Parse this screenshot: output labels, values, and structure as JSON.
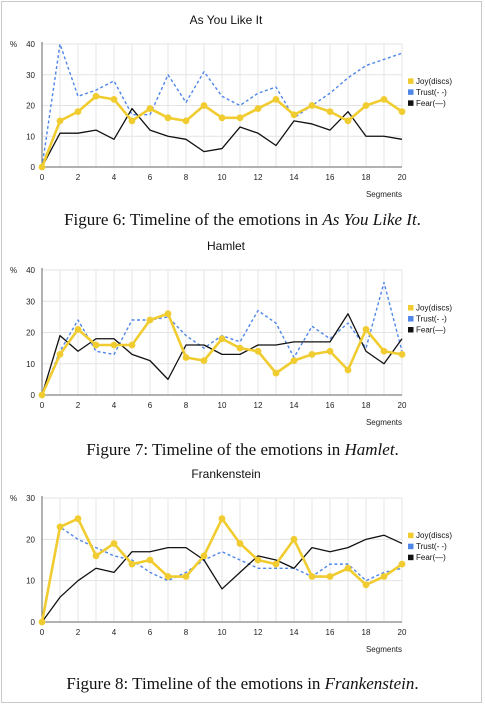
{
  "chart_data": [
    {
      "type": "line",
      "title": "As You Like It",
      "ylabel": "%",
      "xlabel": "Segments",
      "ylim": [
        0,
        40
      ],
      "yticks": [
        0,
        10,
        20,
        30,
        40
      ],
      "xlim": [
        0,
        20
      ],
      "xticks": [
        0,
        2,
        4,
        6,
        8,
        10,
        12,
        14,
        16,
        18,
        20
      ],
      "grid": true,
      "legend_placement": "right",
      "x": [
        0,
        1,
        2,
        3,
        4,
        5,
        6,
        7,
        8,
        9,
        10,
        11,
        12,
        13,
        14,
        15,
        16,
        17,
        18,
        19,
        20
      ],
      "series": [
        {
          "name": "Joy(discs)",
          "style": "discs",
          "color": "#f0cc30",
          "values": [
            0,
            15,
            18,
            23,
            22,
            15,
            19,
            16,
            15,
            20,
            16,
            16,
            19,
            22,
            17,
            20,
            18,
            15,
            20,
            22,
            18
          ]
        },
        {
          "name": "Trust(- -)",
          "style": "dashed",
          "color": "#4f86e8",
          "values": [
            0,
            40,
            23,
            25,
            28,
            17,
            17,
            30,
            21,
            31,
            23,
            20,
            24,
            26,
            16,
            20,
            24,
            29,
            33,
            35,
            37
          ]
        },
        {
          "name": "Fear(—)",
          "style": "solid",
          "color": "#111111",
          "values": [
            0,
            11,
            11,
            12,
            9,
            19,
            12,
            10,
            9,
            5,
            6,
            13,
            11,
            7,
            15,
            14,
            12,
            18,
            10,
            10,
            9
          ]
        }
      ],
      "caption": {
        "prefix": "Figure 6: Timeline of the emotions in ",
        "work": "As You Like It",
        "suffix": "."
      }
    },
    {
      "type": "line",
      "title": "Hamlet",
      "ylabel": "%",
      "xlabel": "Segments",
      "ylim": [
        0,
        40
      ],
      "yticks": [
        0,
        10,
        20,
        30,
        40
      ],
      "xlim": [
        0,
        20
      ],
      "xticks": [
        0,
        2,
        4,
        6,
        8,
        10,
        12,
        14,
        16,
        18,
        20
      ],
      "grid": true,
      "legend_placement": "right",
      "x": [
        0,
        1,
        2,
        3,
        4,
        5,
        6,
        7,
        8,
        9,
        10,
        11,
        12,
        13,
        14,
        15,
        16,
        17,
        18,
        19,
        20
      ],
      "series": [
        {
          "name": "Joy(discs)",
          "style": "discs",
          "color": "#f0cc30",
          "values": [
            0,
            13,
            21,
            16,
            16,
            16,
            24,
            26,
            12,
            11,
            18,
            15,
            14,
            7,
            11,
            13,
            14,
            8,
            21,
            14,
            13
          ]
        },
        {
          "name": "Trust(- -)",
          "style": "dashed",
          "color": "#4f86e8",
          "values": [
            0,
            14,
            24,
            14,
            13,
            24,
            24,
            25,
            19,
            15,
            19,
            17,
            27,
            23,
            12,
            22,
            18,
            23,
            15,
            36,
            14
          ]
        },
        {
          "name": "Fear(—)",
          "style": "solid",
          "color": "#111111",
          "values": [
            0,
            19,
            14,
            18,
            18,
            13,
            11,
            5,
            16,
            16,
            13,
            13,
            16,
            16,
            17,
            17,
            17,
            26,
            14,
            10,
            18
          ]
        }
      ],
      "caption": {
        "prefix": "Figure 7: Timeline of the emotions in ",
        "work": "Hamlet",
        "suffix": "."
      }
    },
    {
      "type": "line",
      "title": "Frankenstein",
      "ylabel": "%",
      "xlabel": "Segments",
      "ylim": [
        0,
        30
      ],
      "yticks": [
        0,
        10,
        20,
        30
      ],
      "xlim": [
        0,
        20
      ],
      "xticks": [
        0,
        2,
        4,
        6,
        8,
        10,
        12,
        14,
        16,
        18,
        20
      ],
      "grid": true,
      "legend_placement": "right",
      "x": [
        0,
        1,
        2,
        3,
        4,
        5,
        6,
        7,
        8,
        9,
        10,
        11,
        12,
        13,
        14,
        15,
        16,
        17,
        18,
        19,
        20
      ],
      "series": [
        {
          "name": "Joy(discs)",
          "style": "discs",
          "color": "#f0cc30",
          "values": [
            0,
            23,
            25,
            16,
            19,
            14,
            15,
            11,
            11,
            16,
            25,
            19,
            15,
            14,
            20,
            11,
            11,
            13,
            9,
            11,
            14
          ]
        },
        {
          "name": "Trust(- -)",
          "style": "dashed",
          "color": "#4f86e8",
          "values": [
            0,
            23,
            20,
            18,
            16,
            15,
            12,
            10,
            12,
            15,
            17,
            15,
            13,
            13,
            13,
            11,
            14,
            14,
            10,
            12,
            13
          ]
        },
        {
          "name": "Fear(—)",
          "style": "solid",
          "color": "#111111",
          "values": [
            0,
            6,
            10,
            13,
            12,
            17,
            17,
            18,
            18,
            15,
            8,
            12,
            16,
            15,
            13,
            18,
            17,
            18,
            20,
            21,
            19
          ]
        }
      ],
      "caption": {
        "prefix": "Figure 8: Timeline of the emotions in ",
        "work": "Frankenstein",
        "suffix": "."
      }
    }
  ]
}
